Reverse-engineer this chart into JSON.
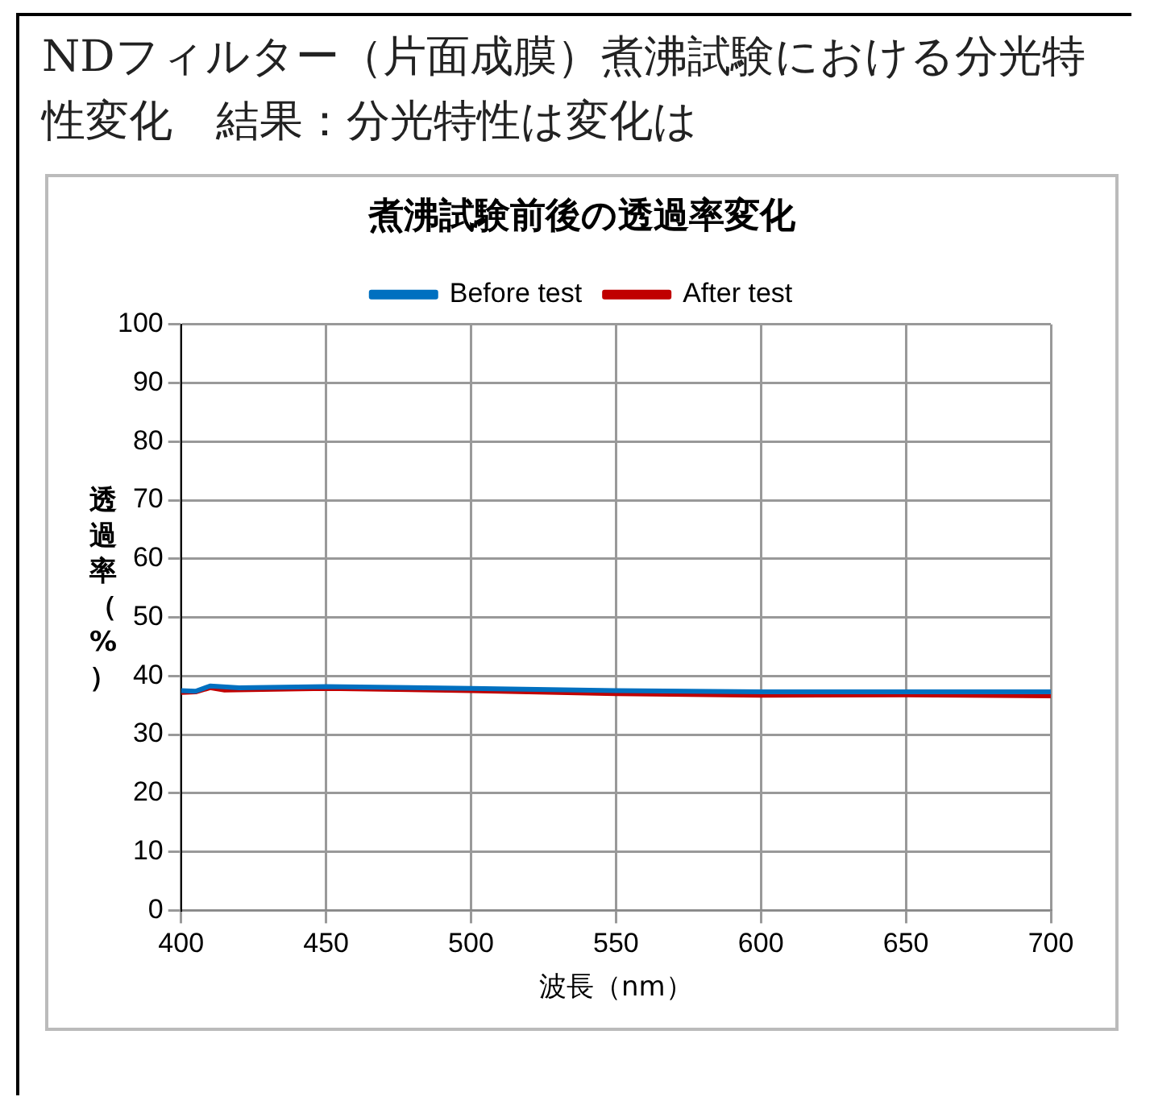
{
  "chart_data": {
    "type": "line",
    "title": "NDフィルター（片面成膜）煮沸試験における分光特性変化　結果：分光特性は変化は",
    "subtitle": "煮沸試験前後の透過率変化",
    "xlabel": "波長（nm）",
    "ylabel": "透過率（%）",
    "xlim": [
      400,
      700
    ],
    "xticks": [
      400,
      450,
      500,
      550,
      600,
      650,
      700
    ],
    "ylim": [
      0,
      100
    ],
    "yticks": [
      0,
      10,
      20,
      30,
      40,
      50,
      60,
      70,
      80,
      90,
      100
    ],
    "grid": true,
    "legend": "top",
    "marker": "none",
    "line_style": "solid",
    "series": [
      {
        "name": "Before test",
        "color": "#0070c0",
        "x": [
          400,
          405,
          410,
          420,
          450,
          500,
          550,
          600,
          650,
          700
        ],
        "values": [
          37.5,
          37.4,
          38.3,
          38.0,
          38.2,
          37.9,
          37.5,
          37.3,
          37.3,
          37.3
        ]
      },
      {
        "name": "After test",
        "color": "#c00000",
        "x": [
          400,
          405,
          410,
          415,
          450,
          500,
          550,
          600,
          650,
          700
        ],
        "values": [
          37.2,
          37.3,
          38.0,
          37.6,
          37.9,
          37.5,
          37.0,
          36.7,
          36.8,
          36.6
        ]
      }
    ]
  }
}
